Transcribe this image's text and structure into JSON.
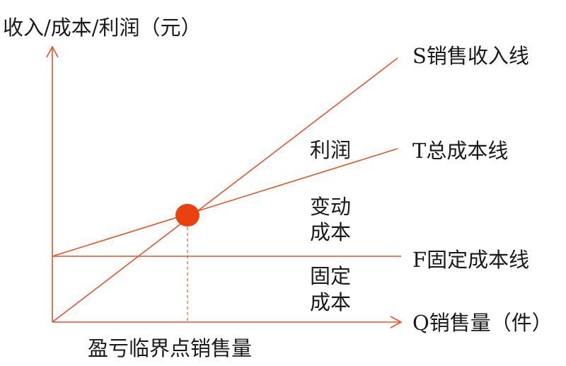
{
  "y_axis_label": "收入/成本/利润（元）",
  "x_axis_label": "Q销售量（件）",
  "lines": {
    "sales": "S销售收入线",
    "total_cost": "T总成本线",
    "fixed_cost": "F固定成本线"
  },
  "regions": {
    "profit": "利润",
    "variable_cost_line1": "变动",
    "variable_cost_line2": "成本",
    "fixed_cost_line1": "固定",
    "fixed_cost_line2": "成本"
  },
  "breakeven_label": "盈亏临界点销售量",
  "colors": {
    "line": "#e8522a",
    "point": "#e8420f",
    "text": "#1a1a1a"
  }
}
